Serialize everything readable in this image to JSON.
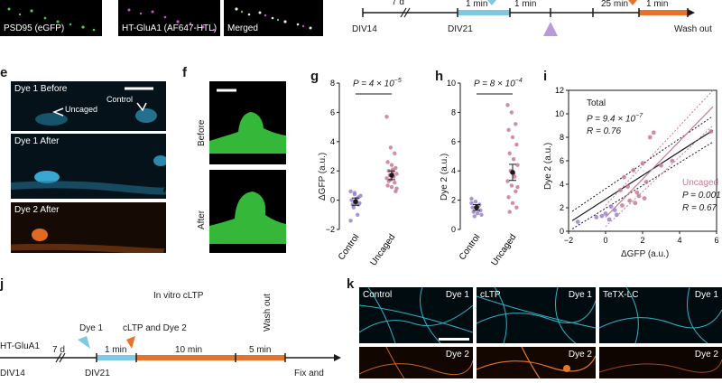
{
  "top_row": {
    "micrographs": [
      {
        "label": "PSD95 (eGFP)"
      },
      {
        "label": "HT-GluA1 (AF647-HTL)"
      },
      {
        "label": "Merged"
      }
    ],
    "timeline": {
      "break_label": "7 d",
      "start_label": "DIV14",
      "div_label": "DIV21",
      "step1_label": "1 min",
      "step2_label": "1 min",
      "step3_label": "25 min",
      "step4_label": "1 min",
      "end_label": "Wash out"
    }
  },
  "panel_letters": {
    "e": "e",
    "f": "f",
    "g": "g",
    "h": "h",
    "i": "i",
    "j": "j",
    "k": "k"
  },
  "panel_e": {
    "tiles": [
      {
        "label": "Dye 1 Before",
        "annot_left": "Uncaged",
        "annot_right": "Control"
      },
      {
        "label": "Dye 1 After"
      },
      {
        "label": "Dye 2 After"
      }
    ]
  },
  "panel_f": {
    "before_label": "Before",
    "after_label": "After"
  },
  "panel_g": {
    "ylabel": "ΔGFP (a.u.)",
    "pvalue": "P = 4 × 10",
    "pexp": "−5",
    "yticks": [
      "8",
      "6",
      "4",
      "2",
      "0",
      "−2"
    ],
    "categories": [
      "Control",
      "Uncaged"
    ]
  },
  "panel_h": {
    "ylabel": "Dye 2 (a.u.)",
    "pvalue": "P = 8 × 10",
    "pexp": "−4",
    "yticks": [
      "10",
      "8",
      "6",
      "4",
      "2",
      "0"
    ],
    "categories": [
      "Control",
      "Uncaged"
    ]
  },
  "panel_i": {
    "ylabel": "Dye 2 (a.u.)",
    "xlabel": "ΔGFP (a.u.)",
    "yticks": [
      "12",
      "10",
      "8",
      "6",
      "4",
      "2",
      "0"
    ],
    "xticks": [
      "−2",
      "0",
      "2",
      "4",
      "6"
    ],
    "total_label": "Total",
    "total_p": "P = 9.4 × 10",
    "total_pexp": "−7",
    "total_r": "R = 0.76",
    "uncaged_label": "Uncaged",
    "uncaged_p": "P = 0.001",
    "uncaged_r": "R = 0.67"
  },
  "panel_j": {
    "title": "In vitro cLTP",
    "row_label": "HT-GluA1",
    "break_label": "7 d",
    "dye1_label": "Dye 1",
    "step1_label": "1 min",
    "cltp_label": "cLTP and Dye 2",
    "step2_label": "10 min",
    "step3_label": "5 min",
    "wash_label": "Wash out",
    "start_label": "DIV14",
    "div_label": "DIV21",
    "fix_label": "Fix and"
  },
  "panel_k": {
    "top": [
      {
        "left": "Control",
        "right": "Dye 1"
      },
      {
        "left": "cLTP",
        "right": "Dye 1"
      },
      {
        "left": "TeTX-LC",
        "right": "Dye 1"
      }
    ],
    "bottom": [
      {
        "right": "Dye 2"
      },
      {
        "right": "Dye 2"
      },
      {
        "right": "Dye 2"
      }
    ]
  },
  "chart_data": [
    {
      "type": "scatter",
      "title": "",
      "ylabel": "ΔGFP (a.u.)",
      "categories": [
        "Control",
        "Uncaged"
      ],
      "ylim": [
        -2,
        8
      ],
      "series": [
        {
          "name": "Control",
          "values": [
            0.6,
            0.4,
            0.2,
            0.0,
            -0.1,
            -0.2,
            -0.3,
            0.1,
            0.3,
            -0.5,
            -1.0,
            -1.4,
            0.5,
            -0.3
          ]
        },
        {
          "name": "Uncaged",
          "values": [
            5.7,
            3.6,
            3.2,
            2.6,
            2.4,
            2.2,
            2.0,
            1.9,
            1.8,
            1.7,
            1.6,
            1.5,
            1.4,
            1.2,
            1.0,
            0.9,
            0.6,
            1.3,
            2.1,
            0.8
          ]
        }
      ],
      "means": [
        -0.1,
        1.7
      ],
      "sem": [
        0.25,
        0.3
      ]
    },
    {
      "type": "scatter",
      "title": "",
      "ylabel": "Dye 2 (a.u.)",
      "categories": [
        "Control",
        "Uncaged"
      ],
      "ylim": [
        0,
        10
      ],
      "series": [
        {
          "name": "Control",
          "values": [
            2.1,
            1.9,
            1.7,
            1.5,
            1.4,
            1.3,
            1.2,
            1.1,
            1.0,
            0.9,
            1.6,
            1.8
          ]
        },
        {
          "name": "Uncaged",
          "values": [
            8.5,
            8.0,
            7.2,
            6.8,
            6.3,
            5.8,
            5.2,
            4.8,
            4.4,
            4.0,
            3.6,
            3.3,
            3.0,
            2.6,
            2.2,
            1.8,
            1.5,
            1.2,
            3.8,
            2.9
          ]
        }
      ],
      "means": [
        1.5,
        3.9
      ],
      "sem": [
        0.2,
        0.55
      ]
    },
    {
      "type": "scatter",
      "title": "",
      "xlabel": "ΔGFP (a.u.)",
      "ylabel": "Dye 2 (a.u.)",
      "xlim": [
        -2,
        6
      ],
      "ylim": [
        0,
        12
      ],
      "series": [
        {
          "name": "Control",
          "points": [
            [
              -1.5,
              0.8
            ],
            [
              -0.5,
              1.2
            ],
            [
              0.0,
              1.5
            ],
            [
              0.3,
              2.1
            ],
            [
              0.2,
              1.0
            ],
            [
              0.5,
              1.8
            ],
            [
              -0.2,
              1.3
            ],
            [
              0.6,
              1.4
            ]
          ]
        },
        {
          "name": "Uncaged",
          "points": [
            [
              0.8,
              3.5
            ],
            [
              1.0,
              4.6
            ],
            [
              1.2,
              3.8
            ],
            [
              1.5,
              5.2
            ],
            [
              1.6,
              2.4
            ],
            [
              1.8,
              3.0
            ],
            [
              2.0,
              5.8
            ],
            [
              2.1,
              2.8
            ],
            [
              2.4,
              8.0
            ],
            [
              2.6,
              8.4
            ],
            [
              3.0,
              5.6
            ],
            [
              1.3,
              2.6
            ],
            [
              0.9,
              2.2
            ],
            [
              1.7,
              3.3
            ],
            [
              2.2,
              4.2
            ],
            [
              5.7,
              8.5
            ],
            [
              3.6,
              6.0
            ]
          ]
        }
      ],
      "fits": [
        {
          "name": "Total",
          "p": "9.4 × 10−7",
          "r": 0.76
        },
        {
          "name": "Uncaged",
          "p": "0.001",
          "r": 0.67
        }
      ]
    }
  ]
}
